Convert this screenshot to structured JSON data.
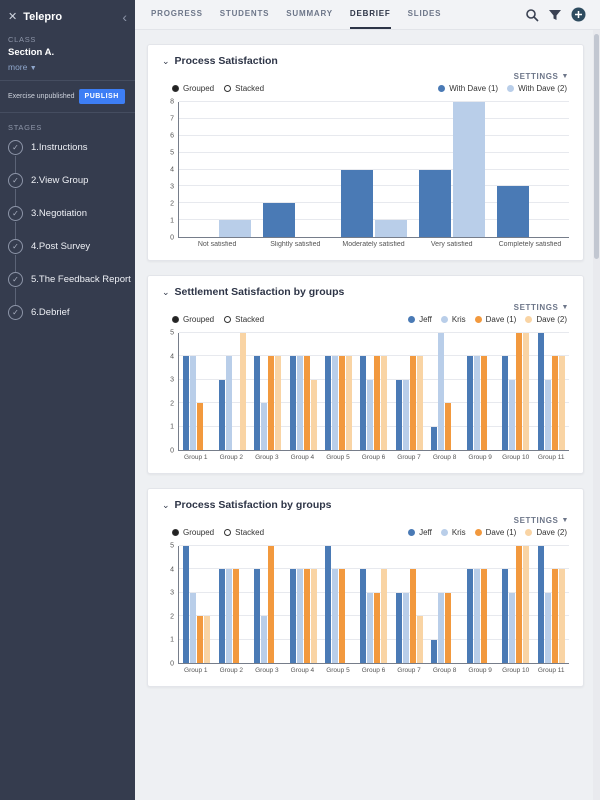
{
  "sidebar": {
    "app_title": "Telepro",
    "class_label": "CLASS",
    "class_name": "Section A.",
    "more_label": "more",
    "publish_status": "Exercise unpublished",
    "publish_button": "PUBLISH",
    "stages_label": "STAGES",
    "stages": [
      "1.Instructions",
      "2.View Group",
      "3.Negotiation",
      "4.Post Survey",
      "5.The Feedback Report",
      "6.Debrief"
    ]
  },
  "topnav": {
    "tabs": [
      {
        "label": "PROGRESS",
        "active": false
      },
      {
        "label": "STUDENTS",
        "active": false
      },
      {
        "label": "SUMMARY",
        "active": false
      },
      {
        "label": "DEBRIEF",
        "active": true
      },
      {
        "label": "SLIDES",
        "active": false
      }
    ],
    "icons": [
      {
        "name": "search-icon",
        "color": "#3a4152"
      },
      {
        "name": "filter-icon",
        "color": "#3a4152"
      },
      {
        "name": "add-icon",
        "color": "#2e4b5f"
      }
    ]
  },
  "cards": [
    {
      "title": "Process Satisfaction",
      "settings_label": "SETTINGS"
    },
    {
      "title": "Settlement Satisfaction by groups",
      "settings_label": "SETTINGS"
    },
    {
      "title": "Process Satisfaction by groups",
      "settings_label": "SETTINGS"
    }
  ],
  "colors": {
    "accent_publish": "#3d7ef5",
    "active_tab": "#2e3547",
    "series_dark_blue": "#4a7ab5",
    "series_light_blue": "#b9cee9",
    "series_orange": "#f2993e",
    "series_peach": "#f9d4a4"
  },
  "chart_data": [
    {
      "type": "bar",
      "title": "Process Satisfaction",
      "modes": [
        {
          "label": "Grouped",
          "selected": true
        },
        {
          "label": "Stacked",
          "selected": false
        }
      ],
      "categories": [
        "Not satisfied",
        "Slightly satisfied",
        "Moderately satisfied",
        "Very satisfied",
        "Completely satisfied"
      ],
      "series": [
        {
          "name": "With Dave (1)",
          "color": "#4a7ab5",
          "values": [
            0,
            2,
            4,
            4,
            3
          ]
        },
        {
          "name": "With Dave (2)",
          "color": "#b9cee9",
          "values": [
            1,
            0,
            1,
            8,
            0
          ]
        }
      ],
      "xlabel": "",
      "ylabel": "",
      "ylim": [
        0,
        8
      ],
      "yticks": [
        0,
        1,
        2,
        3,
        4,
        5,
        6,
        7,
        8
      ],
      "grid": true,
      "legend_position": "top-right"
    },
    {
      "type": "bar",
      "title": "Settlement Satisfaction by groups",
      "modes": [
        {
          "label": "Grouped",
          "selected": true
        },
        {
          "label": "Stacked",
          "selected": false
        }
      ],
      "categories": [
        "Group 1",
        "Group 2",
        "Group 3",
        "Group 4",
        "Group 5",
        "Group 6",
        "Group 7",
        "Group 8",
        "Group 9",
        "Group 10",
        "Group 11"
      ],
      "series": [
        {
          "name": "Jeff",
          "color": "#4a7ab5",
          "values": [
            4,
            3,
            4,
            4,
            4,
            4,
            3,
            1,
            4,
            4,
            5
          ]
        },
        {
          "name": "Kris",
          "color": "#b9cee9",
          "values": [
            4,
            4,
            2,
            4,
            4,
            3,
            3,
            5,
            4,
            3,
            3
          ]
        },
        {
          "name": "Dave (1)",
          "color": "#f2993e",
          "values": [
            2,
            0,
            4,
            4,
            4,
            4,
            4,
            2,
            4,
            5,
            4
          ]
        },
        {
          "name": "Dave (2)",
          "color": "#f9d4a4",
          "values": [
            0,
            5,
            4,
            3,
            4,
            4,
            4,
            0,
            0,
            5,
            4
          ]
        }
      ],
      "xlabel": "",
      "ylabel": "",
      "ylim": [
        0,
        5
      ],
      "yticks": [
        0,
        1,
        2,
        3,
        4,
        5
      ],
      "grid": true,
      "legend_position": "top-right"
    },
    {
      "type": "bar",
      "title": "Process Satisfaction by groups",
      "modes": [
        {
          "label": "Grouped",
          "selected": true
        },
        {
          "label": "Stacked",
          "selected": false
        }
      ],
      "categories": [
        "Group 1",
        "Group 2",
        "Group 3",
        "Group 4",
        "Group 5",
        "Group 6",
        "Group 7",
        "Group 8",
        "Group 9",
        "Group 10",
        "Group 11"
      ],
      "series": [
        {
          "name": "Jeff",
          "color": "#4a7ab5",
          "values": [
            5,
            4,
            4,
            4,
            5,
            4,
            3,
            1,
            4,
            4,
            5
          ]
        },
        {
          "name": "Kris",
          "color": "#b9cee9",
          "values": [
            3,
            4,
            2,
            4,
            4,
            3,
            3,
            3,
            4,
            3,
            3
          ]
        },
        {
          "name": "Dave (1)",
          "color": "#f2993e",
          "values": [
            2,
            4,
            5,
            4,
            4,
            3,
            4,
            3,
            4,
            5,
            4
          ]
        },
        {
          "name": "Dave (2)",
          "color": "#f9d4a4",
          "values": [
            2,
            0,
            0,
            4,
            0,
            4,
            2,
            0,
            0,
            5,
            4
          ]
        }
      ],
      "xlabel": "",
      "ylabel": "",
      "ylim": [
        0,
        5
      ],
      "yticks": [
        0,
        1,
        2,
        3,
        4,
        5
      ],
      "grid": true,
      "legend_position": "top-right"
    }
  ]
}
